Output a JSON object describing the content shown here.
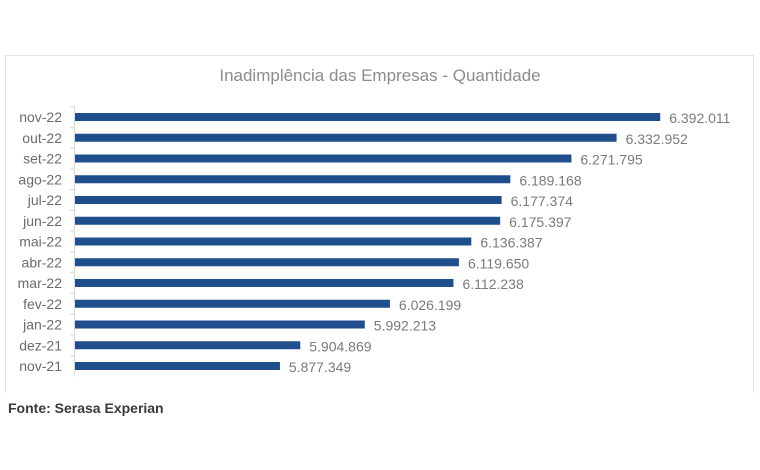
{
  "chart_data": {
    "type": "bar",
    "orientation": "horizontal",
    "title": "Inadimplência das Empresas - Quantidade",
    "categories": [
      "nov-22",
      "out-22",
      "set-22",
      "ago-22",
      "jul-22",
      "jun-22",
      "mai-22",
      "abr-22",
      "mar-22",
      "fev-22",
      "jan-22",
      "dez-21",
      "nov-21"
    ],
    "values": [
      6392011,
      6332952,
      6271795,
      6189168,
      6177374,
      6175397,
      6136387,
      6119650,
      6112238,
      6026199,
      5992213,
      5904869,
      5877349
    ],
    "data_labels": [
      "6.392.011",
      "6.332.952",
      "6.271.795",
      "6.189.168",
      "6.177.374",
      "6.175.397",
      "6.136.387",
      "6.119.650",
      "6.112.238",
      "6.026.199",
      "5.992.213",
      "5.904.869",
      "5.877.349"
    ],
    "xlim": [
      5600000,
      6500000
    ],
    "grid": false,
    "legend": "none",
    "bar_color": "#1f4e8c"
  },
  "source": "Fonte: Serasa Experian"
}
